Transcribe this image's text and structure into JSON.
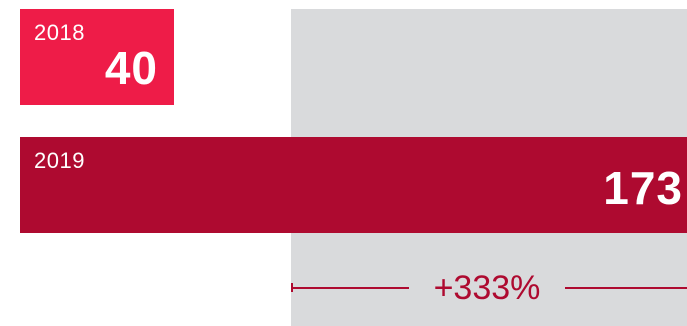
{
  "chart_data": {
    "type": "bar",
    "orientation": "horizontal",
    "categories": [
      "2018",
      "2019"
    ],
    "values": [
      40,
      173
    ],
    "value_labels": [
      "40",
      "173"
    ],
    "change_label": "+333%",
    "title": "",
    "xlabel": "",
    "ylabel": "",
    "xlim": [
      0,
      173
    ],
    "grid": false,
    "legend": "none"
  },
  "colors": {
    "bar_2018": "#ee1c48",
    "bar_2019": "#ae0a30",
    "panel": "#d9dadc",
    "annotation": "#ae0a30",
    "label_text": "#ffffff"
  }
}
